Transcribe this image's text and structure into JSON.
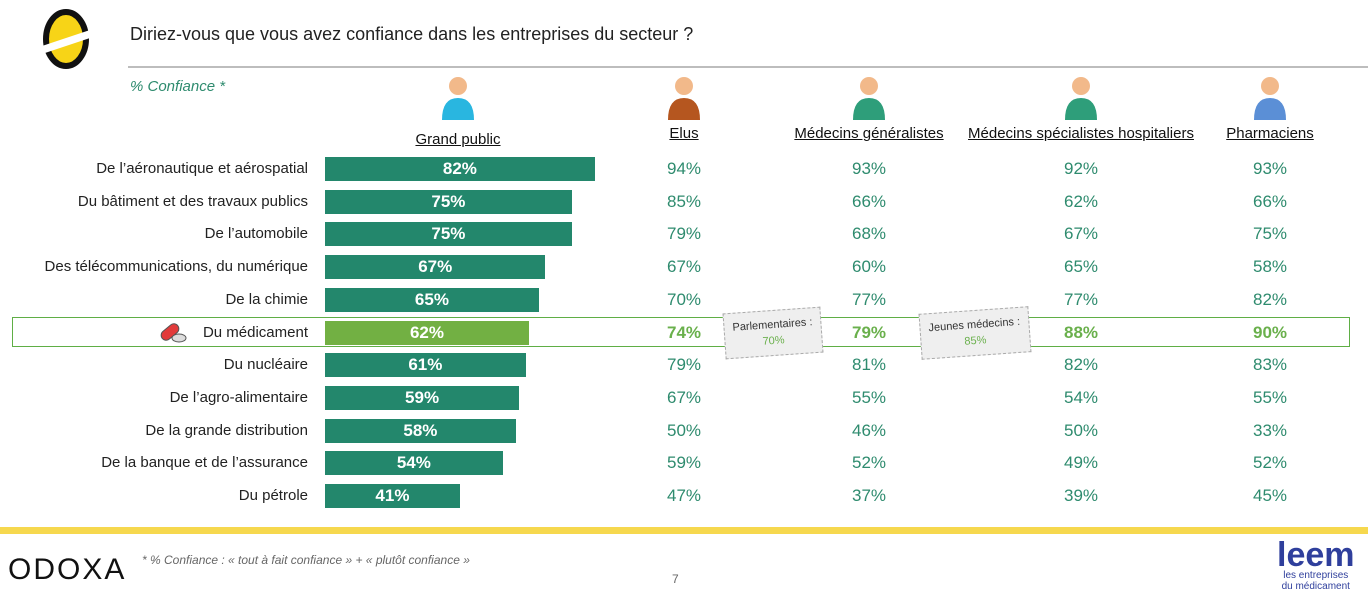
{
  "title": "Diriez-vous que vous avez confiance dans les entreprises du secteur ?",
  "subtitle": "% Confiance *",
  "footnote": "* % Confiance : « tout à fait confiance » + « plutôt confiance »",
  "page_number": "7",
  "logos": {
    "odoxa": "ODOXA",
    "leem": "leem",
    "leem_tagline1": "les entreprises",
    "leem_tagline2": "du médicament"
  },
  "colors": {
    "bar": "#23876c",
    "highlight_bar": "#72b043",
    "text": "#2e8b6e",
    "highlight_text": "#6ab04c"
  },
  "chart_data": {
    "type": "table",
    "title": "Diriez-vous que vous avez confiance dans les entreprises du secteur ?",
    "columns": [
      "Grand public",
      "Elus",
      "Médecins généralistes",
      "Médecins spécialistes hospitaliers",
      "Pharmaciens"
    ],
    "rows": [
      {
        "label": "De l’aéronautique et aérospatial",
        "values": [
          82,
          94,
          93,
          92,
          93
        ]
      },
      {
        "label": "Du bâtiment et des travaux publics",
        "values": [
          75,
          85,
          66,
          62,
          66
        ]
      },
      {
        "label": "De l’automobile",
        "values": [
          75,
          79,
          68,
          67,
          75
        ]
      },
      {
        "label": "Des télécommunications, du numérique",
        "values": [
          67,
          67,
          60,
          65,
          58
        ]
      },
      {
        "label": "De la chimie",
        "values": [
          65,
          70,
          77,
          77,
          82
        ]
      },
      {
        "label": "Du médicament",
        "values": [
          62,
          74,
          79,
          88,
          90
        ],
        "highlight": true
      },
      {
        "label": "Du nucléaire",
        "values": [
          61,
          79,
          81,
          82,
          83
        ]
      },
      {
        "label": "De l’agro-alimentaire",
        "values": [
          59,
          67,
          55,
          54,
          55
        ]
      },
      {
        "label": "De la grande distribution",
        "values": [
          58,
          50,
          46,
          50,
          33
        ]
      },
      {
        "label": "De la banque et de l’assurance",
        "values": [
          54,
          59,
          52,
          49,
          52
        ]
      },
      {
        "label": "Du pétrole",
        "values": [
          41,
          47,
          37,
          39,
          45
        ]
      }
    ],
    "annotations": [
      {
        "label": "Parlementaires :",
        "value": "70%"
      },
      {
        "label": "Jeunes médecins :",
        "value": "85%"
      }
    ],
    "xlim": [
      0,
      100
    ]
  }
}
